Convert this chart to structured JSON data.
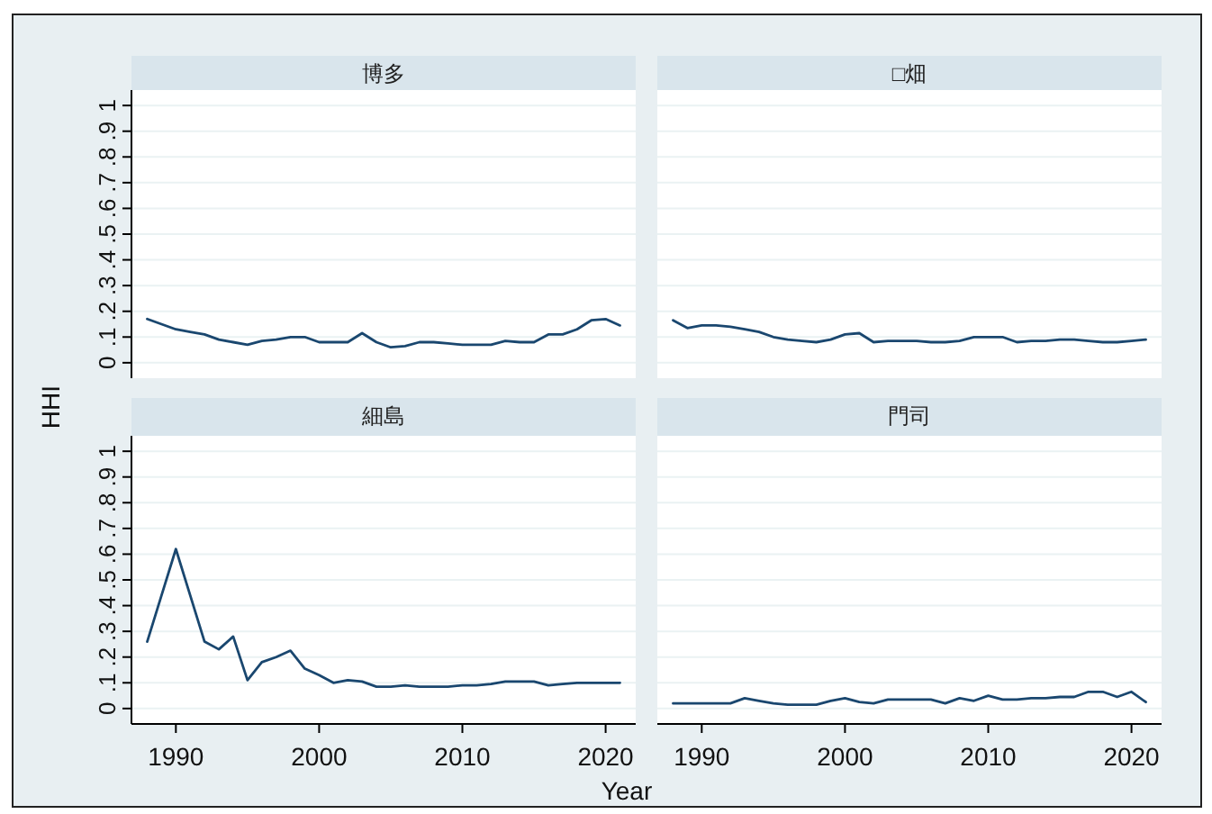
{
  "chart_data": [
    {
      "type": "line",
      "title": "博多",
      "ylabel": "HHI",
      "x": [
        1988,
        1989,
        1990,
        1991,
        1992,
        1993,
        1994,
        1995,
        1996,
        1997,
        1998,
        1999,
        2000,
        2001,
        2002,
        2003,
        2004,
        2005,
        2006,
        2007,
        2008,
        2009,
        2010,
        2011,
        2012,
        2013,
        2014,
        2015,
        2016,
        2017,
        2018,
        2019,
        2020,
        2021
      ],
      "series": [
        {
          "color": "#1a476f",
          "values": [
            0.17,
            0.15,
            0.13,
            0.12,
            0.11,
            0.09,
            0.08,
            0.07,
            0.085,
            0.09,
            0.1,
            0.1,
            0.08,
            0.08,
            0.08,
            0.115,
            0.08,
            0.06,
            0.065,
            0.08,
            0.08,
            0.075,
            0.07,
            0.07,
            0.07,
            0.085,
            0.08,
            0.08,
            0.11,
            0.11,
            0.13,
            0.165,
            0.17,
            0.145
          ]
        }
      ],
      "xlim": [
        1986.9,
        2022.1
      ],
      "ylim": [
        -0.06,
        1.06
      ],
      "yticks": [
        0,
        {
          "value": 0.1,
          "label": ".1"
        },
        {
          "value": 0.2,
          "label": ".2"
        },
        {
          "value": 0.3,
          "label": ".3"
        },
        {
          "value": 0.4,
          "label": ".4"
        },
        {
          "value": 0.5,
          "label": ".5"
        },
        {
          "value": 0.6,
          "label": ".6"
        },
        {
          "value": 0.7,
          "label": ".7"
        },
        {
          "value": 0.8,
          "label": ".8"
        },
        {
          "value": 0.9,
          "label": ".9"
        },
        1
      ],
      "grid": "y",
      "tick_labels": "y"
    },
    {
      "type": "line",
      "title": "□畑",
      "x": [
        1988,
        1989,
        1990,
        1991,
        1992,
        1993,
        1994,
        1995,
        1996,
        1997,
        1998,
        1999,
        2000,
        2001,
        2002,
        2003,
        2004,
        2005,
        2006,
        2007,
        2008,
        2009,
        2010,
        2011,
        2012,
        2013,
        2014,
        2015,
        2016,
        2017,
        2018,
        2019,
        2020,
        2021
      ],
      "series": [
        {
          "color": "#1a476f",
          "values": [
            0.165,
            0.135,
            0.145,
            0.145,
            0.14,
            0.13,
            0.12,
            0.1,
            0.09,
            0.085,
            0.08,
            0.09,
            0.11,
            0.115,
            0.08,
            0.085,
            0.085,
            0.085,
            0.08,
            0.08,
            0.085,
            0.1,
            0.1,
            0.1,
            0.08,
            0.085,
            0.085,
            0.09,
            0.09,
            0.085,
            0.08,
            0.08,
            0.085,
            0.09
          ]
        }
      ],
      "xlim": [
        1986.9,
        2022.1
      ],
      "ylim": [
        -0.06,
        1.06
      ],
      "yticks": [
        0,
        0.1,
        0.2,
        0.3,
        0.4,
        0.5,
        0.6,
        0.7,
        0.8,
        0.9,
        1
      ],
      "grid": "y",
      "tick_labels": false
    },
    {
      "type": "line",
      "title": "細島",
      "x": [
        1988,
        1989,
        1990,
        1991,
        1992,
        1993,
        1994,
        1995,
        1996,
        1997,
        1998,
        1999,
        2000,
        2001,
        2002,
        2003,
        2004,
        2005,
        2006,
        2007,
        2008,
        2009,
        2010,
        2011,
        2012,
        2013,
        2014,
        2015,
        2016,
        2017,
        2018,
        2019,
        2020,
        2021
      ],
      "series": [
        {
          "color": "#1a476f",
          "values": [
            0.26,
            0.44,
            0.62,
            0.44,
            0.26,
            0.23,
            0.28,
            0.11,
            0.18,
            0.2,
            0.225,
            0.155,
            0.13,
            0.1,
            0.11,
            0.105,
            0.085,
            0.085,
            0.09,
            0.085,
            0.085,
            0.085,
            0.09,
            0.09,
            0.095,
            0.105,
            0.105,
            0.105,
            0.09,
            0.095,
            0.1,
            0.1,
            0.1,
            0.1
          ]
        }
      ],
      "xlim": [
        1986.9,
        2022.1
      ],
      "ylim": [
        -0.06,
        1.06
      ],
      "xticks": [
        1990,
        2000,
        2010,
        2020
      ],
      "yticks": [
        0,
        {
          "value": 0.1,
          "label": ".1"
        },
        {
          "value": 0.2,
          "label": ".2"
        },
        {
          "value": 0.3,
          "label": ".3"
        },
        {
          "value": 0.4,
          "label": ".4"
        },
        {
          "value": 0.5,
          "label": ".5"
        },
        {
          "value": 0.6,
          "label": ".6"
        },
        {
          "value": 0.7,
          "label": ".7"
        },
        {
          "value": 0.8,
          "label": ".8"
        },
        {
          "value": 0.9,
          "label": ".9"
        },
        1
      ],
      "grid": "y"
    },
    {
      "type": "line",
      "title": "門司",
      "xlabel": "Year",
      "x": [
        1988,
        1989,
        1990,
        1991,
        1992,
        1993,
        1994,
        1995,
        1996,
        1997,
        1998,
        1999,
        2000,
        2001,
        2002,
        2003,
        2004,
        2005,
        2006,
        2007,
        2008,
        2009,
        2010,
        2011,
        2012,
        2013,
        2014,
        2015,
        2016,
        2017,
        2018,
        2019,
        2020,
        2021
      ],
      "series": [
        {
          "color": "#1a476f",
          "values": [
            0.02,
            0.02,
            0.02,
            0.02,
            0.02,
            0.04,
            0.03,
            0.02,
            0.015,
            0.015,
            0.015,
            0.03,
            0.04,
            0.025,
            0.02,
            0.035,
            0.035,
            0.035,
            0.035,
            0.02,
            0.04,
            0.03,
            0.05,
            0.035,
            0.035,
            0.04,
            0.04,
            0.045,
            0.045,
            0.065,
            0.065,
            0.045,
            0.065,
            0.025
          ]
        }
      ],
      "xlim": [
        1986.9,
        2022.1
      ],
      "ylim": [
        -0.06,
        1.06
      ],
      "xticks": [
        1990,
        2000,
        2010,
        2020
      ],
      "yticks": [
        0,
        0.1,
        0.2,
        0.3,
        0.4,
        0.5,
        0.6,
        0.7,
        0.8,
        0.9,
        1
      ],
      "grid": "y",
      "tick_labels": "x"
    }
  ]
}
